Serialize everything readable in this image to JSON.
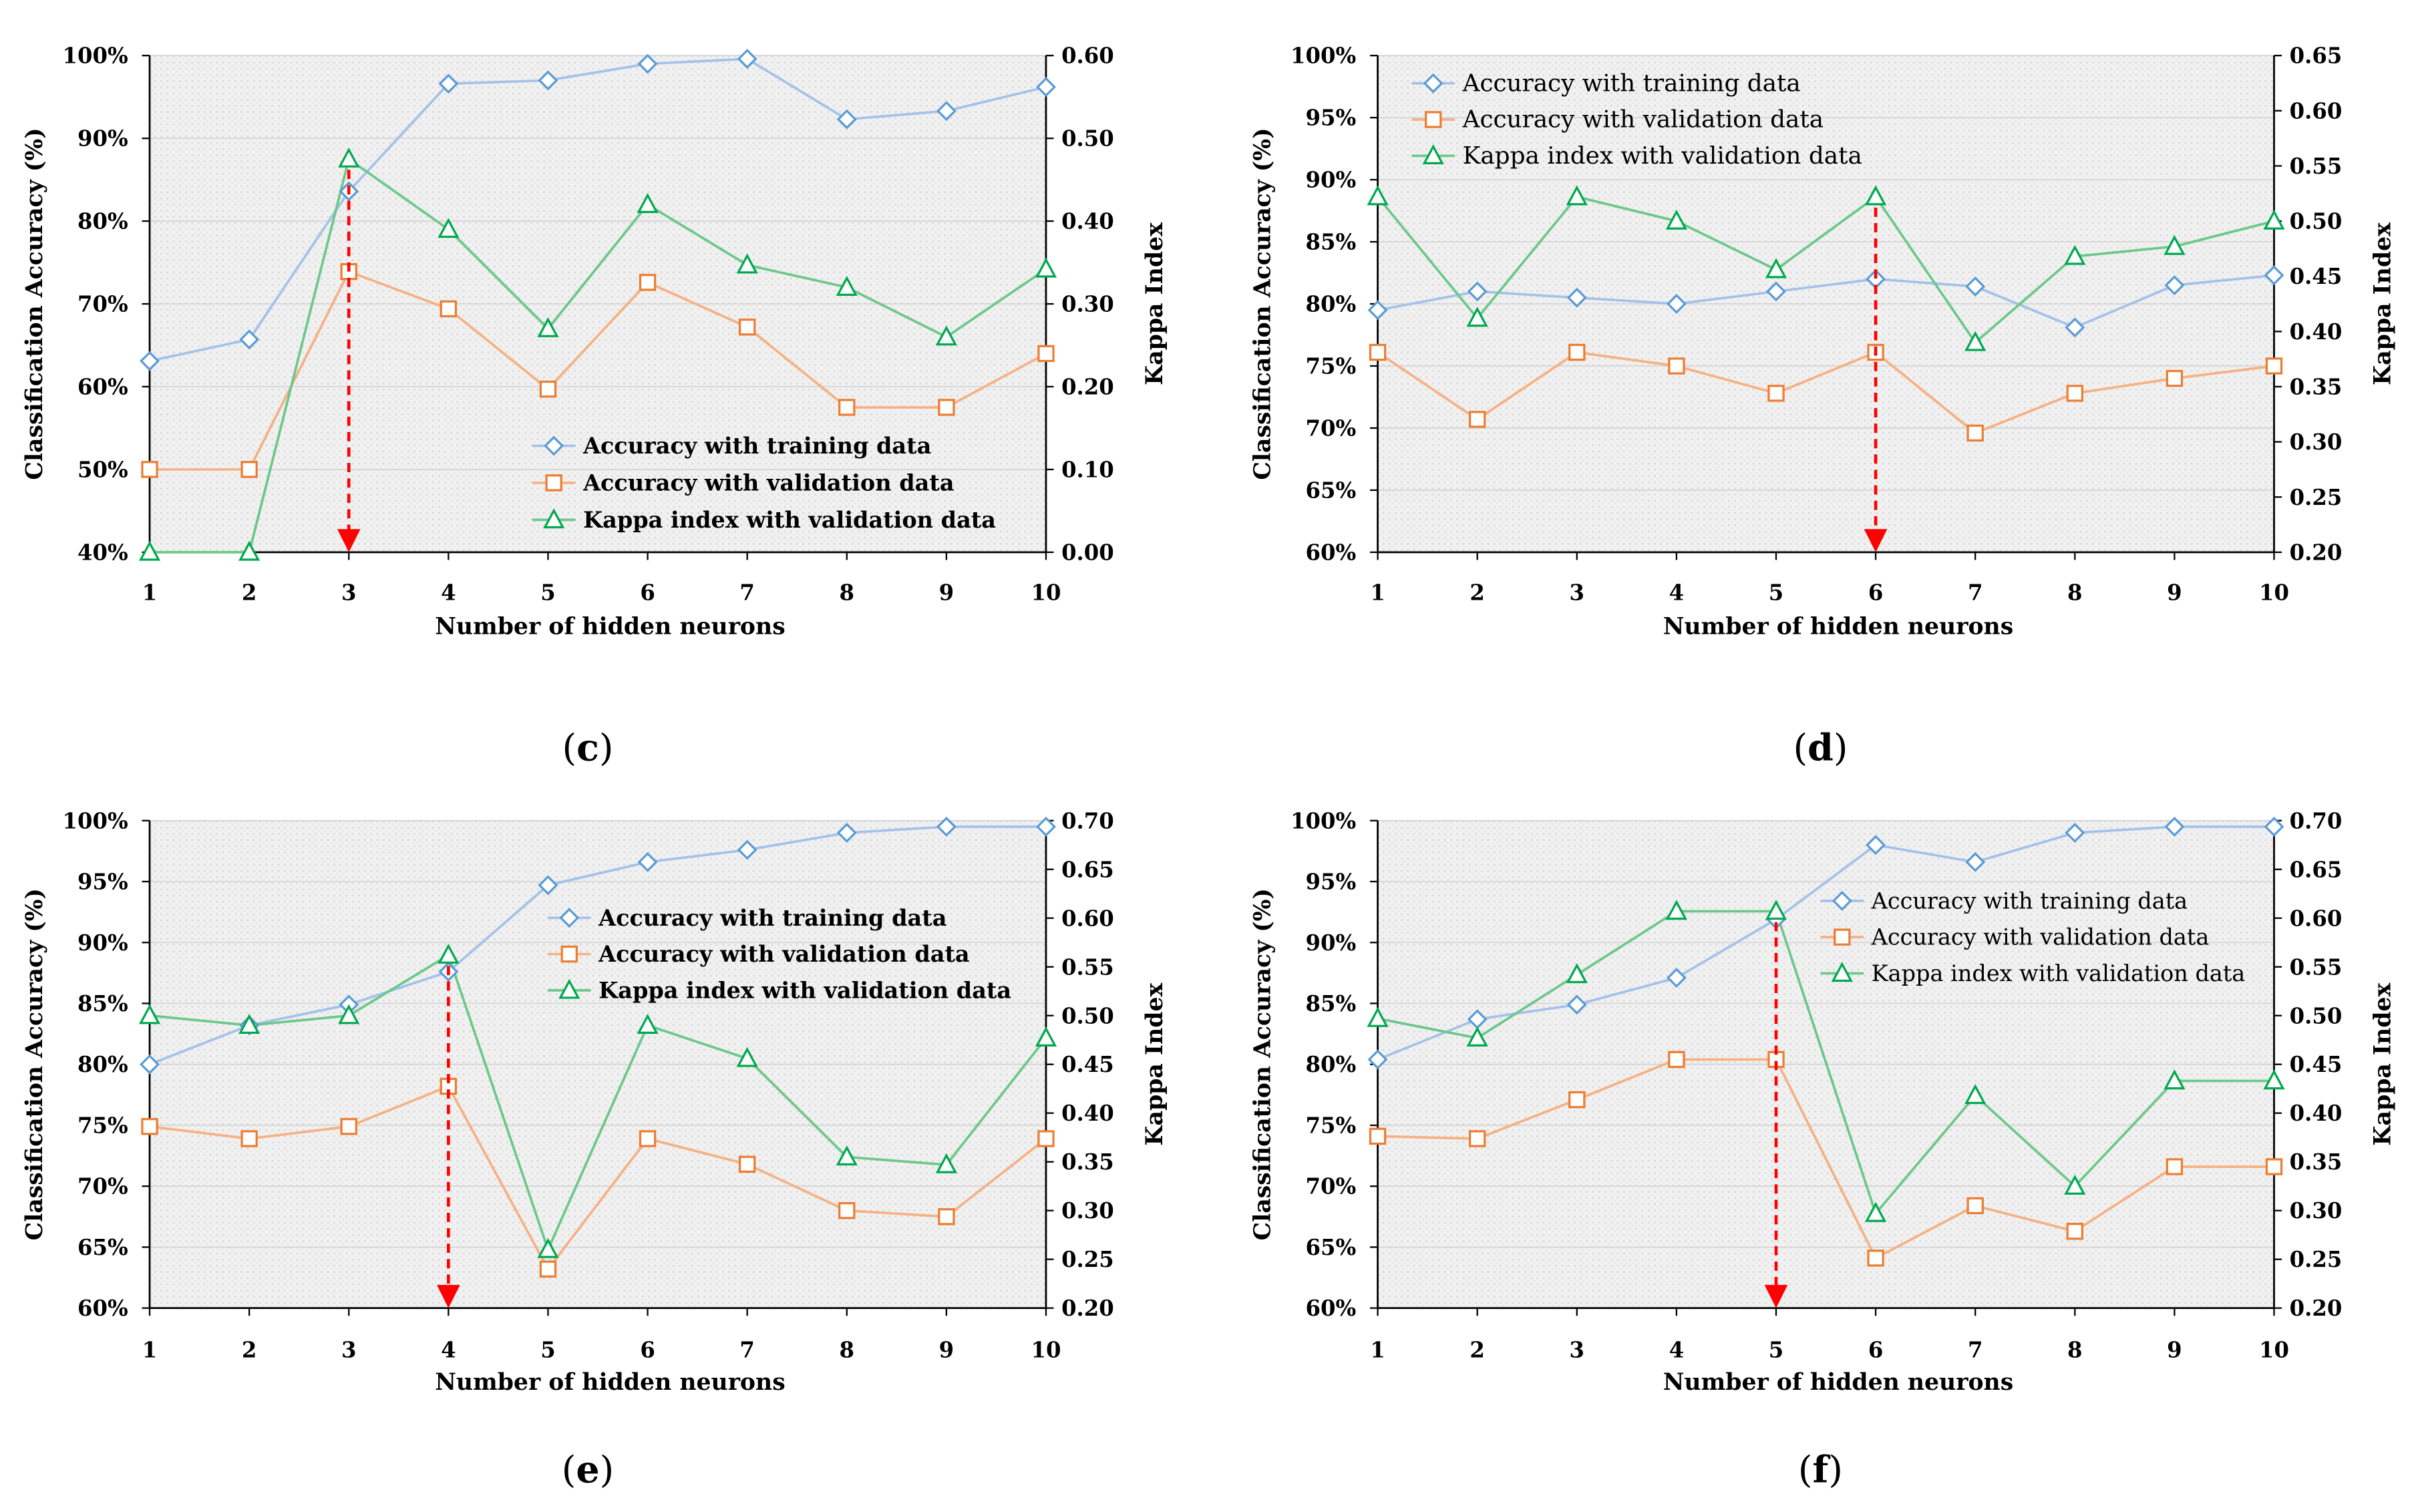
{
  "chart_data": [
    {
      "type": "line",
      "caption": "(c)",
      "xlabel": "Number of hidden neurons",
      "ylabel": "Classification Accuracy (%)",
      "y2label": "Kappa Index",
      "x": [
        1,
        2,
        3,
        4,
        5,
        6,
        7,
        8,
        9,
        10
      ],
      "x_ticks": [
        "1",
        "2",
        "3",
        "4",
        "5",
        "6",
        "7",
        "8",
        "9",
        "10"
      ],
      "ylim": [
        40,
        100
      ],
      "y_ticks": [
        "40%",
        "50%",
        "60%",
        "70%",
        "80%",
        "90%",
        "100%"
      ],
      "y2lim": [
        0,
        0.6
      ],
      "y2_ticks": [
        "0.00",
        "0.10",
        "0.20",
        "0.30",
        "0.40",
        "0.50",
        "0.60"
      ],
      "grid": true,
      "legend_position": "bottom-right",
      "highlight_x": 3,
      "highlight_color": "#FF0000",
      "series": [
        {
          "name": "Accuracy with training data",
          "axis": "left",
          "marker": "diamond",
          "color": "#A4C2E8",
          "marker_color": "#5B9BD5",
          "values": [
            63.1,
            65.7,
            83.6,
            96.6,
            97.0,
            99.0,
            99.6,
            92.3,
            93.3,
            96.2
          ]
        },
        {
          "name": "Accuracy with validation data",
          "axis": "left",
          "marker": "square",
          "color": "#F5B183",
          "marker_color": "#ED7D31",
          "values": [
            50.0,
            50.0,
            73.9,
            69.4,
            59.7,
            72.6,
            67.2,
            57.5,
            57.5,
            64.0
          ]
        },
        {
          "name": "Kappa index with validation data",
          "axis": "right",
          "marker": "triangle",
          "color": "#6CC88A",
          "marker_color": "#00A84F",
          "values": [
            0.0,
            0.0,
            0.475,
            0.39,
            0.27,
            0.42,
            0.347,
            0.32,
            0.26,
            0.342
          ]
        }
      ]
    },
    {
      "type": "line",
      "caption": "(d)",
      "xlabel": "Number of hidden neurons",
      "ylabel": "Classification Accuracy (%)",
      "y2label": "Kappa Index",
      "x": [
        1,
        2,
        3,
        4,
        5,
        6,
        7,
        8,
        9,
        10
      ],
      "x_ticks": [
        "1",
        "2",
        "3",
        "4",
        "5",
        "6",
        "7",
        "8",
        "9",
        "10"
      ],
      "ylim": [
        60,
        100
      ],
      "y_ticks": [
        "60%",
        "65%",
        "70%",
        "75%",
        "80%",
        "85%",
        "90%",
        "95%",
        "100%"
      ],
      "y2lim": [
        0.2,
        0.65
      ],
      "y2_ticks": [
        "0.20",
        "0.25",
        "0.30",
        "0.35",
        "0.40",
        "0.45",
        "0.50",
        "0.55",
        "0.60",
        "0.65"
      ],
      "grid": true,
      "legend_position": "top-left",
      "highlight_x": 6,
      "highlight_color": "#FF0000",
      "series": [
        {
          "name": "Accuracy with training data",
          "axis": "left",
          "marker": "diamond",
          "color": "#A4C2E8",
          "marker_color": "#5B9BD5",
          "values": [
            79.5,
            81.0,
            80.5,
            80.0,
            81.0,
            82.0,
            81.4,
            78.1,
            81.5,
            82.3
          ]
        },
        {
          "name": "Accuracy with validation data",
          "axis": "left",
          "marker": "square",
          "color": "#F5B183",
          "marker_color": "#ED7D31",
          "values": [
            76.1,
            70.7,
            76.1,
            75.0,
            72.8,
            76.1,
            69.6,
            72.8,
            74.0,
            75.0
          ]
        },
        {
          "name": "Kappa index with validation data",
          "axis": "right",
          "marker": "triangle",
          "color": "#6CC88A",
          "marker_color": "#00A84F",
          "values": [
            0.522,
            0.412,
            0.522,
            0.5,
            0.456,
            0.522,
            0.39,
            0.468,
            0.477,
            0.5
          ]
        }
      ]
    },
    {
      "type": "line",
      "caption": "(e)",
      "xlabel": "Number of hidden neurons",
      "ylabel": "Classification Accuracy (%)",
      "y2label": "Kappa Index",
      "x": [
        1,
        2,
        3,
        4,
        5,
        6,
        7,
        8,
        9,
        10
      ],
      "x_ticks": [
        "1",
        "2",
        "3",
        "4",
        "5",
        "6",
        "7",
        "8",
        "9",
        "10"
      ],
      "ylim": [
        60,
        100
      ],
      "y_ticks": [
        "60%",
        "65%",
        "70%",
        "75%",
        "80%",
        "85%",
        "90%",
        "95%",
        "100%"
      ],
      "y2lim": [
        0.2,
        0.7
      ],
      "y2_ticks": [
        "0.20",
        "0.25",
        "0.30",
        "0.35",
        "0.40",
        "0.45",
        "0.50",
        "0.55",
        "0.60",
        "0.65",
        "0.70"
      ],
      "grid": true,
      "legend_position": "top-right",
      "highlight_x": 4,
      "highlight_color": "#FF0000",
      "series": [
        {
          "name": "Accuracy with training data",
          "axis": "left",
          "marker": "diamond",
          "color": "#A4C2E8",
          "marker_color": "#5B9BD5",
          "values": [
            80.0,
            83.2,
            84.9,
            87.6,
            94.7,
            96.6,
            97.6,
            99.0,
            99.5,
            99.5
          ]
        },
        {
          "name": "Accuracy with validation data",
          "axis": "left",
          "marker": "square",
          "color": "#F5B183",
          "marker_color": "#ED7D31",
          "values": [
            74.9,
            73.9,
            74.9,
            78.2,
            63.2,
            73.9,
            71.8,
            68.0,
            67.5,
            73.9
          ]
        },
        {
          "name": "Kappa index with validation data",
          "axis": "right",
          "marker": "triangle",
          "color": "#6CC88A",
          "marker_color": "#00A84F",
          "values": [
            0.5,
            0.49,
            0.5,
            0.562,
            0.26,
            0.49,
            0.456,
            0.355,
            0.347,
            0.477
          ]
        }
      ]
    },
    {
      "type": "line",
      "caption": "(f)",
      "xlabel": "Number of hidden neurons",
      "ylabel": "Classification Accuracy (%)",
      "y2label": "Kappa Index",
      "x": [
        1,
        2,
        3,
        4,
        5,
        6,
        7,
        8,
        9,
        10
      ],
      "x_ticks": [
        "1",
        "2",
        "3",
        "4",
        "5",
        "6",
        "7",
        "8",
        "9",
        "10"
      ],
      "ylim": [
        60,
        100
      ],
      "y_ticks": [
        "60%",
        "65%",
        "70%",
        "75%",
        "80%",
        "85%",
        "90%",
        "95%",
        "100%"
      ],
      "y2lim": [
        0.2,
        0.7
      ],
      "y2_ticks": [
        "0.20",
        "0.25",
        "0.30",
        "0.35",
        "0.40",
        "0.45",
        "0.50",
        "0.55",
        "0.60",
        "0.65",
        "0.70"
      ],
      "grid": true,
      "legend_position": "top-right",
      "highlight_x": 5,
      "highlight_color": "#FF0000",
      "series": [
        {
          "name": "Accuracy with training data",
          "axis": "left",
          "marker": "diamond",
          "color": "#A4C2E8",
          "marker_color": "#5B9BD5",
          "values": [
            80.4,
            83.7,
            84.9,
            87.1,
            91.9,
            98.0,
            96.6,
            99.0,
            99.5,
            99.5
          ]
        },
        {
          "name": "Accuracy with validation data",
          "axis": "left",
          "marker": "square",
          "color": "#F5B183",
          "marker_color": "#ED7D31",
          "values": [
            74.1,
            73.9,
            77.1,
            80.4,
            80.4,
            64.1,
            68.4,
            66.3,
            71.6,
            71.6
          ]
        },
        {
          "name": "Kappa index with validation data",
          "axis": "right",
          "marker": "triangle",
          "color": "#6CC88A",
          "marker_color": "#00A84F",
          "values": [
            0.497,
            0.477,
            0.542,
            0.607,
            0.607,
            0.297,
            0.418,
            0.325,
            0.433,
            0.433
          ]
        }
      ]
    }
  ]
}
